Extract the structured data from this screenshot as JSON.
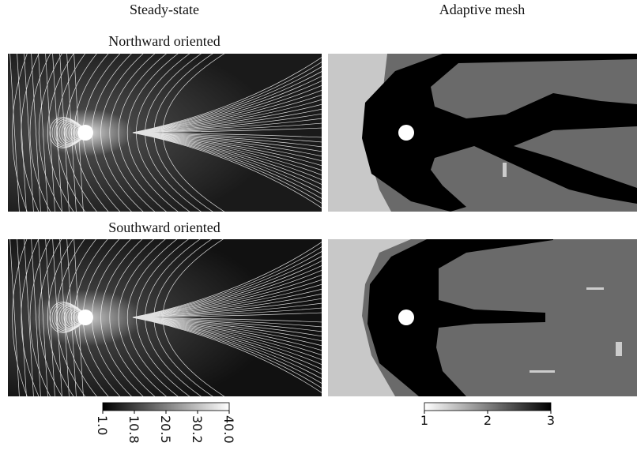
{
  "columns": {
    "left": "Steady-state",
    "right": "Adaptive mesh"
  },
  "rows": {
    "top": "Northward oriented",
    "bottom": "Southward oriented"
  },
  "colorbars": {
    "density": [
      "1.0",
      "10.8",
      "20.5",
      "30.2",
      "40.0"
    ],
    "level": [
      "1",
      "2",
      "3"
    ]
  }
}
